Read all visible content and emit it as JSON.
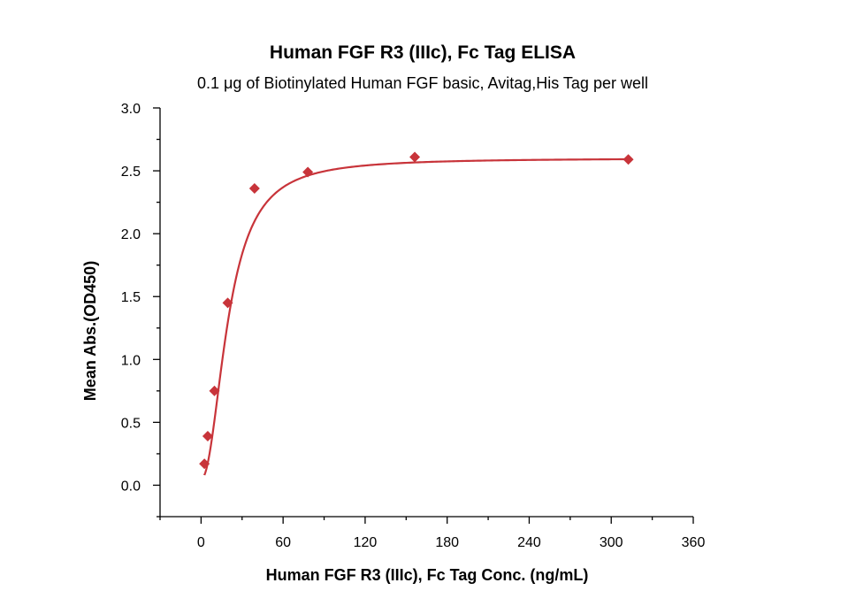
{
  "chart_data": {
    "type": "scatter",
    "title": "Human FGF R3 (IIIc), Fc Tag ELISA",
    "subtitle": "0.1 μg of Biotinylated Human FGF basic, Avitag,His Tag per well",
    "xlabel": "Human FGF R3 (IIIc), Fc Tag Conc. (ng/mL)",
    "ylabel": "Mean Abs.(OD450)",
    "xlim": [
      -30,
      360
    ],
    "ylim": [
      -0.25,
      3.0
    ],
    "xticks": [
      0,
      60,
      120,
      180,
      240,
      300,
      360
    ],
    "xtick_labels": [
      "0",
      "60",
      "120",
      "180",
      "240",
      "300",
      "360"
    ],
    "yticks": [
      0.0,
      0.5,
      1.0,
      1.5,
      2.0,
      2.5,
      3.0
    ],
    "ytick_labels": [
      "0.0",
      "0.5",
      "1.0",
      "1.5",
      "2.0",
      "2.5",
      "3.0"
    ],
    "grid": false,
    "legend": "none",
    "marker": "diamond",
    "color": "#c8343a",
    "series": [
      {
        "x": [
          2.44,
          4.88,
          9.77,
          19.5,
          39.1,
          78.1,
          156.3,
          312.5
        ],
        "y": [
          0.17,
          0.39,
          0.75,
          1.45,
          2.36,
          2.49,
          2.61,
          2.59
        ]
      }
    ],
    "fit": {
      "type": "4PL",
      "bottom": 0.05,
      "top": 2.6,
      "ec50": 20.0,
      "hill": 2.1
    }
  }
}
